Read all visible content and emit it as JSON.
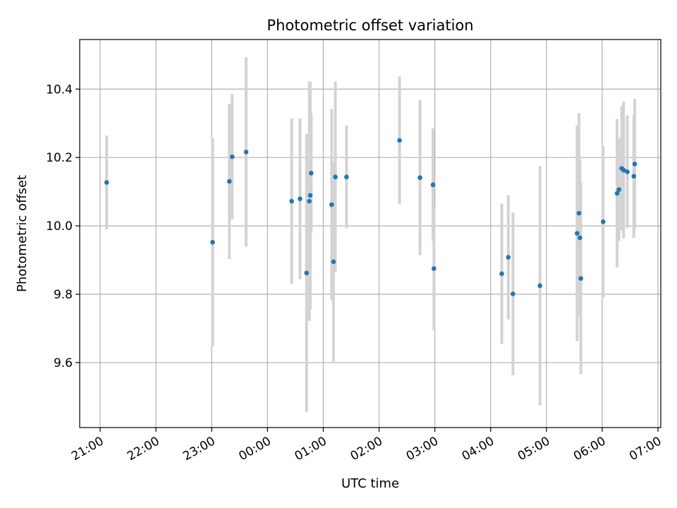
{
  "chart_data": {
    "type": "scatter",
    "title": "Photometric offset variation",
    "xlabel": "UTC time",
    "ylabel": "Photometric offset",
    "x_tick_labels": [
      "21:00",
      "22:00",
      "23:00",
      "00:00",
      "01:00",
      "02:00",
      "03:00",
      "04:00",
      "05:00",
      "06:00",
      "07:00"
    ],
    "y_ticks": [
      9.6,
      9.8,
      10.0,
      10.2,
      10.4
    ],
    "y_tick_labels": [
      "9.6",
      "9.8",
      "10.0",
      "10.2",
      "10.4"
    ],
    "x_range": [
      "20:38",
      "07:03"
    ],
    "ylim": [
      9.41,
      10.545
    ],
    "grid": true,
    "errorbar_color": "#d3d3d3",
    "marker_color": "#1f77b4",
    "points": [
      {
        "t": "21:07",
        "y": 10.127,
        "err": 0.137
      },
      {
        "t": "23:01",
        "y": 9.952,
        "err": 0.305
      },
      {
        "t": "23:19",
        "y": 10.13,
        "err": 0.227
      },
      {
        "t": "23:22",
        "y": 10.202,
        "err": 0.183
      },
      {
        "t": "23:37",
        "y": 10.216,
        "err": 0.277
      },
      {
        "t": "00:26",
        "y": 10.072,
        "err": 0.242
      },
      {
        "t": "00:35",
        "y": 10.079,
        "err": 0.235
      },
      {
        "t": "00:42",
        "y": 9.862,
        "err": 0.407
      },
      {
        "t": "00:45",
        "y": 10.072,
        "err": 0.35
      },
      {
        "t": "00:46",
        "y": 10.089,
        "err": 0.333
      },
      {
        "t": "00:47",
        "y": 10.154,
        "err": 0.175
      },
      {
        "t": "01:09",
        "y": 10.062,
        "err": 0.28
      },
      {
        "t": "01:11",
        "y": 9.895,
        "err": 0.292
      },
      {
        "t": "01:13",
        "y": 10.143,
        "err": 0.279
      },
      {
        "t": "01:25",
        "y": 10.143,
        "err": 0.15
      },
      {
        "t": "02:22",
        "y": 10.25,
        "err": 0.187
      },
      {
        "t": "02:44",
        "y": 10.141,
        "err": 0.227
      },
      {
        "t": "02:58",
        "y": 10.12,
        "err": 0.165
      },
      {
        "t": "02:59",
        "y": 9.875,
        "err": 0.18
      },
      {
        "t": "04:12",
        "y": 9.86,
        "err": 0.205
      },
      {
        "t": "04:19",
        "y": 9.908,
        "err": 0.182
      },
      {
        "t": "04:24",
        "y": 9.801,
        "err": 0.238
      },
      {
        "t": "04:53",
        "y": 9.825,
        "err": 0.35
      },
      {
        "t": "05:33",
        "y": 9.978,
        "err": 0.315
      },
      {
        "t": "05:35",
        "y": 10.037,
        "err": 0.293
      },
      {
        "t": "05:36",
        "y": 9.965,
        "err": 0.23
      },
      {
        "t": "05:37",
        "y": 9.846,
        "err": 0.28
      },
      {
        "t": "06:01",
        "y": 10.012,
        "err": 0.222
      },
      {
        "t": "06:16",
        "y": 10.095,
        "err": 0.217
      },
      {
        "t": "06:18",
        "y": 10.106,
        "err": 0.15
      },
      {
        "t": "06:21",
        "y": 10.168,
        "err": 0.182
      },
      {
        "t": "06:23",
        "y": 10.163,
        "err": 0.2
      },
      {
        "t": "06:27",
        "y": 10.158,
        "err": 0.165
      },
      {
        "t": "06:34",
        "y": 10.145,
        "err": 0.18
      },
      {
        "t": "06:35",
        "y": 10.181,
        "err": 0.19
      }
    ]
  }
}
